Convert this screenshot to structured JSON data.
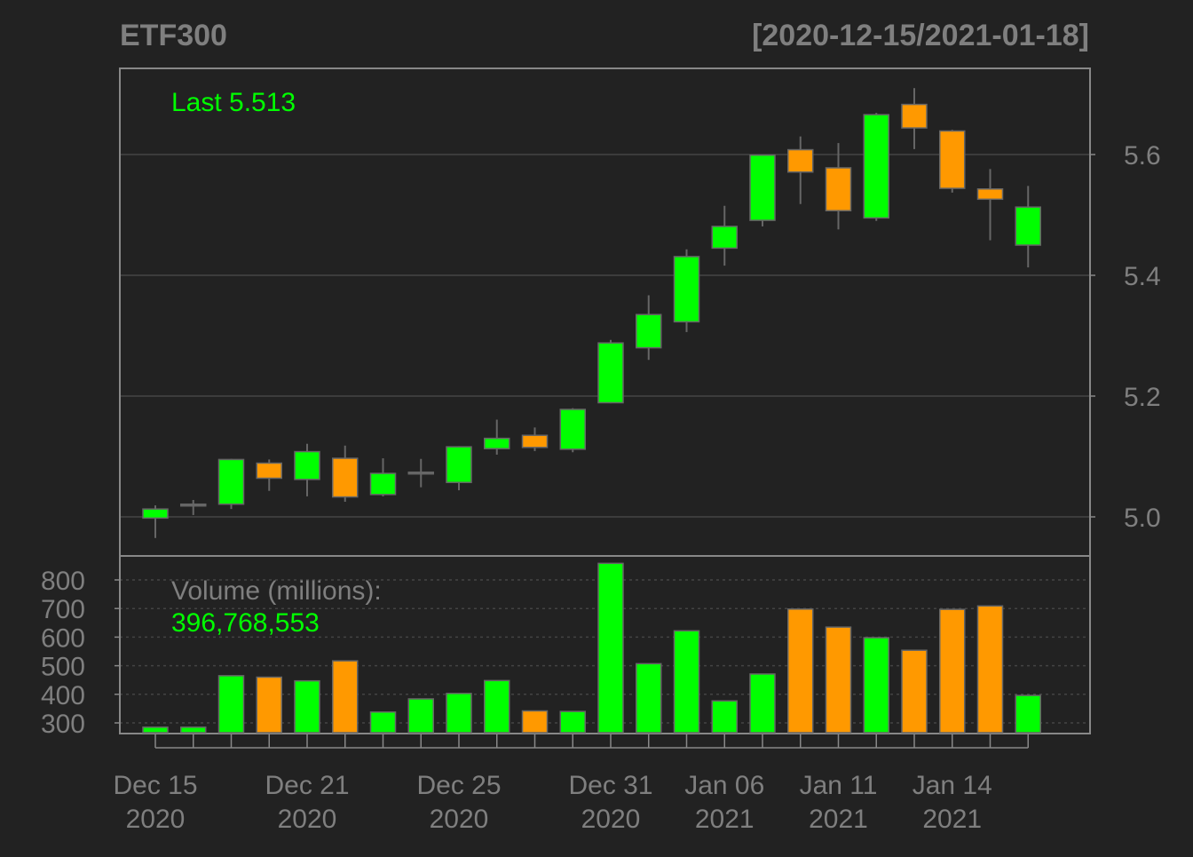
{
  "chart_data": {
    "type": "candlestick",
    "title": "ETF300",
    "date_range": "[2020-12-15/2021-01-18]",
    "last_label": "Last 5.513",
    "volume_label": "Volume (millions):",
    "volume_last": "396,768,553",
    "price_axis": {
      "min": 4.96,
      "max": 5.71,
      "ticks": [
        "5.0",
        "5.2",
        "5.4",
        "5.6"
      ],
      "tick_values": [
        5.0,
        5.2,
        5.4,
        5.6
      ]
    },
    "volume_axis": {
      "min": 265,
      "max": 860,
      "ticks": [
        "300",
        "400",
        "500",
        "600",
        "700",
        "800"
      ],
      "tick_values": [
        300,
        400,
        500,
        600,
        700,
        800
      ]
    },
    "x_ticks": [
      {
        "index": 0,
        "line1": "Dec 15",
        "line2": "2020"
      },
      {
        "index": 4,
        "line1": "Dec 21",
        "line2": "2020"
      },
      {
        "index": 8,
        "line1": "Dec 25",
        "line2": "2020"
      },
      {
        "index": 12,
        "line1": "Dec 31",
        "line2": "2020"
      },
      {
        "index": 15,
        "line1": "Jan 06",
        "line2": "2021"
      },
      {
        "index": 18,
        "line1": "Jan 11",
        "line2": "2021"
      },
      {
        "index": 21,
        "line1": "Jan 14",
        "line2": "2021"
      }
    ],
    "candles": [
      {
        "o": 4.998,
        "h": 5.019,
        "l": 4.965,
        "c": 5.013,
        "v": 285
      },
      {
        "o": 5.02,
        "h": 5.028,
        "l": 5.003,
        "c": 5.021,
        "v": 285
      },
      {
        "o": 5.021,
        "h": 5.096,
        "l": 5.013,
        "c": 5.095,
        "v": 465
      },
      {
        "o": 5.089,
        "h": 5.095,
        "l": 5.043,
        "c": 5.064,
        "v": 460
      },
      {
        "o": 5.062,
        "h": 5.121,
        "l": 5.034,
        "c": 5.108,
        "v": 447
      },
      {
        "o": 5.097,
        "h": 5.118,
        "l": 5.025,
        "c": 5.033,
        "v": 517
      },
      {
        "o": 5.037,
        "h": 5.097,
        "l": 5.034,
        "c": 5.072,
        "v": 338
      },
      {
        "o": 5.074,
        "h": 5.096,
        "l": 5.049,
        "c": 5.074,
        "v": 384
      },
      {
        "o": 5.057,
        "h": 5.117,
        "l": 5.044,
        "c": 5.116,
        "v": 403
      },
      {
        "o": 5.113,
        "h": 5.161,
        "l": 5.103,
        "c": 5.13,
        "v": 448
      },
      {
        "o": 5.135,
        "h": 5.148,
        "l": 5.109,
        "c": 5.115,
        "v": 342
      },
      {
        "o": 5.112,
        "h": 5.18,
        "l": 5.107,
        "c": 5.178,
        "v": 340
      },
      {
        "o": 5.189,
        "h": 5.293,
        "l": 5.188,
        "c": 5.288,
        "v": 858
      },
      {
        "o": 5.28,
        "h": 5.367,
        "l": 5.26,
        "c": 5.335,
        "v": 507
      },
      {
        "o": 5.323,
        "h": 5.443,
        "l": 5.306,
        "c": 5.431,
        "v": 622
      },
      {
        "o": 5.445,
        "h": 5.515,
        "l": 5.416,
        "c": 5.481,
        "v": 377
      },
      {
        "o": 5.491,
        "h": 5.6,
        "l": 5.481,
        "c": 5.599,
        "v": 471
      },
      {
        "o": 5.608,
        "h": 5.63,
        "l": 5.518,
        "c": 5.571,
        "v": 698
      },
      {
        "o": 5.578,
        "h": 5.619,
        "l": 5.476,
        "c": 5.507,
        "v": 635
      },
      {
        "o": 5.495,
        "h": 5.669,
        "l": 5.49,
        "c": 5.666,
        "v": 598
      },
      {
        "o": 5.683,
        "h": 5.71,
        "l": 5.609,
        "c": 5.644,
        "v": 554
      },
      {
        "o": 5.639,
        "h": 5.641,
        "l": 5.537,
        "c": 5.544,
        "v": 697
      },
      {
        "o": 5.543,
        "h": 5.576,
        "l": 5.458,
        "c": 5.526,
        "v": 709
      },
      {
        "o": 5.45,
        "h": 5.548,
        "l": 5.413,
        "c": 5.513,
        "v": 396
      }
    ]
  },
  "colors": {
    "background": "#222222",
    "up": "#00FF00",
    "down": "#FF9900",
    "text": "#7F7F7F",
    "title": "#7F7F7F",
    "border": "#888888",
    "grid": "#444444"
  }
}
